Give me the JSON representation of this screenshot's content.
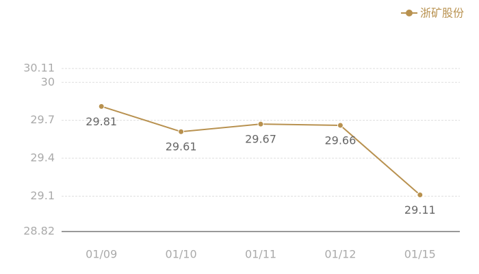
{
  "chart_data": {
    "type": "line",
    "categories": [
      "01/09",
      "01/10",
      "01/11",
      "01/12",
      "01/15"
    ],
    "series": [
      {
        "name": "浙矿股份",
        "color": "#b8914f",
        "values": [
          29.81,
          29.61,
          29.67,
          29.66,
          29.11
        ]
      }
    ],
    "ylim": [
      28.82,
      30.11
    ],
    "yticks": [
      28.82,
      29.1,
      29.4,
      29.7,
      30,
      30.11
    ],
    "grid": true,
    "legend": "top-right",
    "data_labels": true
  }
}
